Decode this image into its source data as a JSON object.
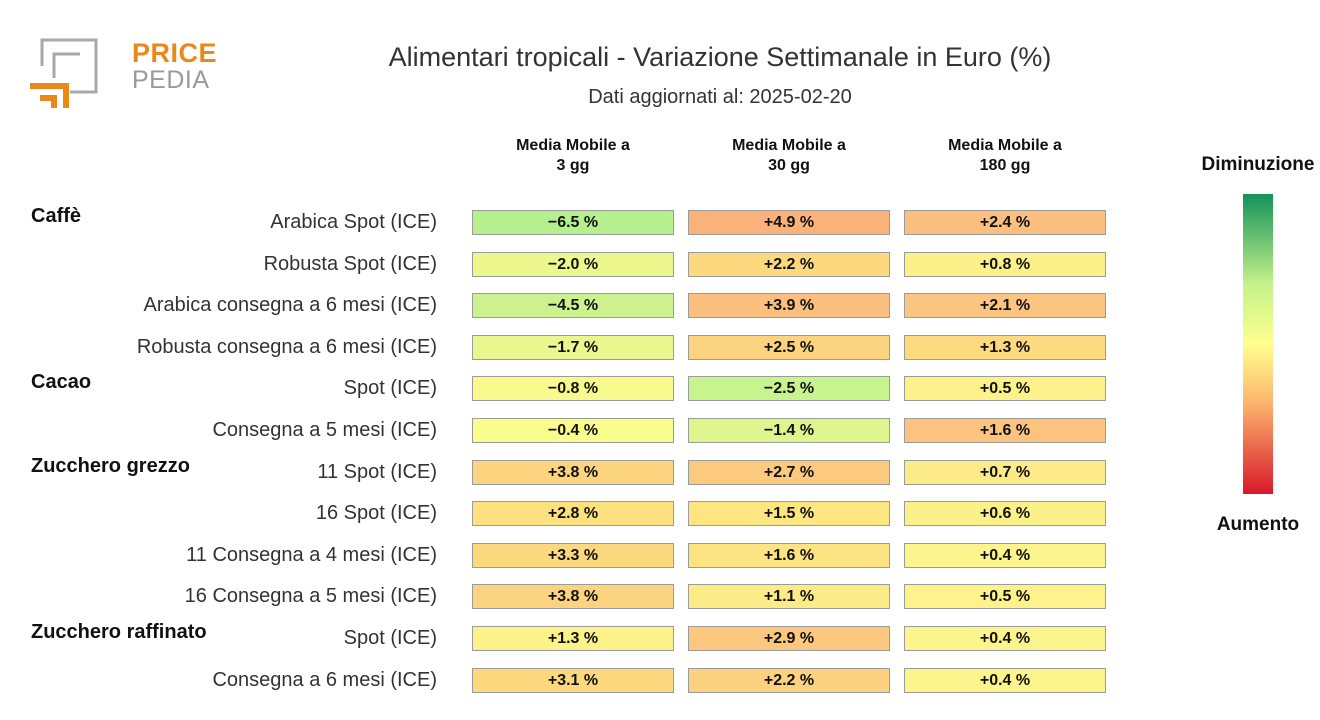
{
  "logo": {
    "word1": "PRICE",
    "word2": "PEDIA"
  },
  "chart_data": {
    "type": "table",
    "title": "Alimentari tropicali - Variazione Settimanale in Euro (%)",
    "subtitle": "Dati aggiornati al: 2025-02-20",
    "columns": [
      "Media Mobile a\n3 gg",
      "Media Mobile a\n30 gg",
      "Media Mobile a\n180 gg"
    ],
    "rows": [
      {
        "group": "Caffè",
        "label": "Arabica Spot (ICE)",
        "values": [
          -6.5,
          4.9,
          2.4
        ],
        "display": [
          "−6.5 %",
          "+4.9 %",
          "+2.4 %"
        ]
      },
      {
        "group": "",
        "label": "Robusta Spot (ICE)",
        "values": [
          -2.0,
          2.2,
          0.8
        ],
        "display": [
          "−2.0 %",
          "+2.2 %",
          "+0.8 %"
        ]
      },
      {
        "group": "",
        "label": "Arabica consegna a 6 mesi (ICE)",
        "values": [
          -4.5,
          3.9,
          2.1
        ],
        "display": [
          "−4.5 %",
          "+3.9 %",
          "+2.1 %"
        ]
      },
      {
        "group": "",
        "label": "Robusta consegna a 6 mesi (ICE)",
        "values": [
          -1.7,
          2.5,
          1.3
        ],
        "display": [
          "−1.7 %",
          "+2.5 %",
          "+1.3 %"
        ]
      },
      {
        "group": "Cacao",
        "label": "Spot (ICE)",
        "values": [
          -0.8,
          -2.5,
          0.5
        ],
        "display": [
          "−0.8 %",
          "−2.5 %",
          "+0.5 %"
        ]
      },
      {
        "group": "",
        "label": "Consegna a 5 mesi (ICE)",
        "values": [
          -0.4,
          -1.4,
          1.6
        ],
        "display": [
          "−0.4 %",
          "−1.4 %",
          "+1.6 %"
        ]
      },
      {
        "group": "Zucchero grezzo",
        "label": "11 Spot (ICE)",
        "values": [
          3.8,
          2.7,
          0.7
        ],
        "display": [
          "+3.8 %",
          "+2.7 %",
          "+0.7 %"
        ]
      },
      {
        "group": "",
        "label": "16 Spot (ICE)",
        "values": [
          2.8,
          1.5,
          0.6
        ],
        "display": [
          "+2.8 %",
          "+1.5 %",
          "+0.6 %"
        ]
      },
      {
        "group": "",
        "label": "11 Consegna a 4 mesi (ICE)",
        "values": [
          3.3,
          1.6,
          0.4
        ],
        "display": [
          "+3.3 %",
          "+1.6 %",
          "+0.4 %"
        ]
      },
      {
        "group": "",
        "label": "16 Consegna a 5 mesi (ICE)",
        "values": [
          3.8,
          1.1,
          0.5
        ],
        "display": [
          "+3.8 %",
          "+1.1 %",
          "+0.5 %"
        ]
      },
      {
        "group": "Zucchero raffinato",
        "label": "Spot (ICE)",
        "values": [
          1.3,
          2.9,
          0.4
        ],
        "display": [
          "+1.3 %",
          "+2.9 %",
          "+0.4 %"
        ]
      },
      {
        "group": "",
        "label": "Consegna a 6 mesi (ICE)",
        "values": [
          3.1,
          2.2,
          0.4
        ],
        "display": [
          "+3.1 %",
          "+2.2 %",
          "+0.4 %"
        ]
      }
    ],
    "cell_colors": [
      [
        "#b6f08e",
        "#fbb27a",
        "#fbbf80"
      ],
      [
        "#ecf78d",
        "#fcd87f",
        "#fcf08a"
      ],
      [
        "#cbf28e",
        "#fbbf80",
        "#fbc481"
      ],
      [
        "#eaf78f",
        "#fcd47f",
        "#fdd97f"
      ],
      [
        "#f8fa8d",
        "#c8f48e",
        "#fcf18a"
      ],
      [
        "#fafc8d",
        "#dff58e",
        "#fcc37f"
      ],
      [
        "#fcd47f",
        "#fcca7f",
        "#fceb88"
      ],
      [
        "#fde07f",
        "#fde581",
        "#fcf08a"
      ],
      [
        "#fcd97f",
        "#fde382",
        "#fcf48c"
      ],
      [
        "#fcd47f",
        "#fdeb88",
        "#fdf28b"
      ],
      [
        "#fdf18a",
        "#fcc87f",
        "#fcf48c"
      ],
      [
        "#fcd97f",
        "#fcd17f",
        "#fcf48c"
      ]
    ],
    "legend": {
      "top": "Diminuzione",
      "bottom": "Aumento"
    }
  }
}
